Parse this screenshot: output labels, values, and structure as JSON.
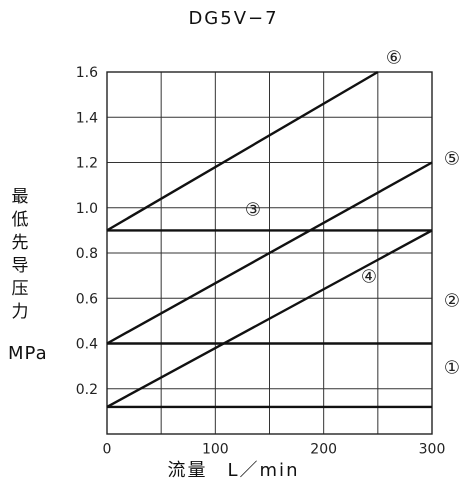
{
  "chart_data": {
    "type": "line",
    "title": "DG5V−7",
    "xlabel": "流量　L／min",
    "ylabel": "最低先导压力",
    "y_unit": "MPa",
    "xlim": [
      0,
      300
    ],
    "ylim": [
      0,
      1.6
    ],
    "x_ticks": [
      "0",
      "100",
      "200",
      "300"
    ],
    "y_ticks": [
      "0.2",
      "0.4",
      "0.6",
      "0.8",
      "1.0",
      "1.2",
      "1.4",
      "1.6"
    ],
    "grid": true,
    "series": [
      {
        "name": "①",
        "x": [
          0,
          300
        ],
        "y": [
          0.12,
          0.12
        ]
      },
      {
        "name": "②",
        "x": [
          0,
          300
        ],
        "y": [
          0.4,
          0.4
        ]
      },
      {
        "name": "③",
        "x": [
          0,
          300
        ],
        "y": [
          0.9,
          0.9
        ]
      },
      {
        "name": "④",
        "x": [
          0,
          300
        ],
        "y": [
          0.12,
          0.9
        ]
      },
      {
        "name": "⑤",
        "x": [
          0,
          300
        ],
        "y": [
          0.4,
          1.2
        ]
      },
      {
        "name": "⑥",
        "x": [
          0,
          250
        ],
        "y": [
          0.9,
          1.6
        ]
      }
    ]
  }
}
